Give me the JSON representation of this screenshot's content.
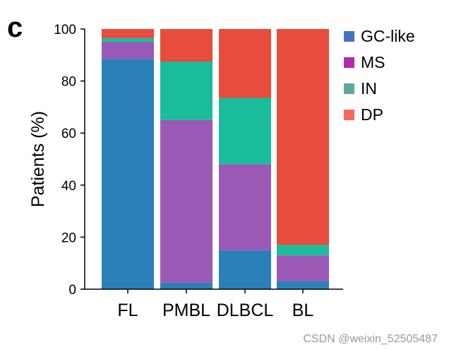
{
  "panel_letter": "c",
  "watermark": "CSDN @weixin_52505487",
  "chart_data": {
    "type": "bar",
    "stacked": true,
    "title": "",
    "xlabel": "",
    "ylabel": "Patients (%)",
    "ylim": [
      0,
      100
    ],
    "yticks": [
      0,
      20,
      40,
      60,
      80,
      100
    ],
    "categories": [
      "FL",
      "PMBL",
      "DLBCL",
      "BL"
    ],
    "series": [
      {
        "name": "GC-like",
        "values": [
          88.5,
          2.5,
          15,
          3
        ],
        "color": "#2a80b9"
      },
      {
        "name": "MS",
        "values": [
          6.5,
          62.5,
          33,
          10
        ],
        "color": "#9b59b6"
      },
      {
        "name": "IN",
        "values": [
          1.5,
          22.5,
          25.5,
          4
        ],
        "color": "#1abc9c"
      },
      {
        "name": "DP",
        "values": [
          3.5,
          12.5,
          26.5,
          83
        ],
        "color": "#e74c3c"
      }
    ],
    "legend": {
      "position": "top-right",
      "entries": [
        {
          "name": "GC-like",
          "color": "#4472c4"
        },
        {
          "name": "MS",
          "color": "#b22aa6"
        },
        {
          "name": "IN",
          "color": "#5fa89a"
        },
        {
          "name": "DP",
          "color": "#f36b5b"
        }
      ]
    },
    "grid": false
  }
}
